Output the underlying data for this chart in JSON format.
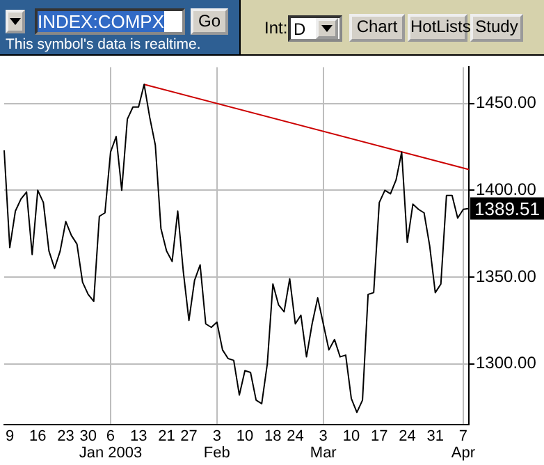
{
  "chart_data": {
    "type": "line",
    "categories": [
      null,
      "9",
      null,
      null,
      null,
      null,
      "16",
      null,
      null,
      null,
      null,
      "23",
      null,
      null,
      null,
      "30",
      null,
      null,
      null,
      "6\nJan 2003",
      null,
      null,
      null,
      null,
      "13",
      null,
      null,
      null,
      null,
      "21",
      null,
      null,
      null,
      "27",
      null,
      null,
      null,
      null,
      "3\nFeb",
      null,
      null,
      null,
      null,
      "10",
      null,
      null,
      null,
      null,
      "18",
      null,
      null,
      null,
      "24",
      null,
      null,
      null,
      null,
      "3\nMar",
      null,
      null,
      null,
      null,
      "10",
      null,
      null,
      null,
      null,
      "17",
      null,
      null,
      null,
      null,
      "24",
      null,
      null,
      null,
      null,
      "31",
      null,
      null,
      null,
      null,
      "7\nApr",
      null
    ],
    "series": [
      {
        "color": "#000000",
        "values": [
          1423,
          1367,
          1388,
          1395,
          1399,
          1363,
          1400,
          1393,
          1365,
          1355,
          1365,
          1382,
          1374,
          1369,
          1347,
          1340,
          1336,
          1385,
          1387,
          1422,
          1431,
          1400,
          1441,
          1448,
          1448,
          1461,
          1442,
          1426,
          1378,
          1365,
          1359,
          1388,
          1353,
          1325,
          1348,
          1357,
          1323,
          1321,
          1324,
          1308,
          1303,
          1302,
          1282,
          1296,
          1295,
          1279,
          1277,
          1300,
          1346,
          1334,
          1330,
          1349,
          1323,
          1328,
          1304,
          1323,
          1338,
          1323,
          1308,
          1314,
          1304,
          1305,
          1280,
          1272,
          1279,
          1340,
          1341,
          1393,
          1400,
          1398,
          1406,
          1422,
          1370,
          1392,
          1389,
          1387,
          1368,
          1341,
          1346,
          1397,
          1397,
          1384,
          1389,
          1389.51
        ]
      },
      {
        "type": "line",
        "color": "#cc0000",
        "values": [
          null,
          null,
          null,
          null,
          null,
          null,
          null,
          null,
          null,
          null,
          null,
          null,
          null,
          null,
          null,
          null,
          null,
          null,
          null,
          null,
          null,
          null,
          null,
          null,
          null,
          1461,
          null,
          null,
          null,
          null,
          null,
          null,
          null,
          null,
          null,
          null,
          null,
          null,
          null,
          null,
          null,
          null,
          null,
          null,
          null,
          null,
          null,
          null,
          null,
          null,
          null,
          null,
          null,
          null,
          null,
          null,
          null,
          null,
          null,
          null,
          null,
          null,
          null,
          null,
          null,
          null,
          null,
          null,
          null,
          null,
          null,
          null,
          null,
          null,
          null,
          null,
          null,
          null,
          null,
          null,
          null,
          null,
          null,
          1412
        ]
      }
    ],
    "ylim": [
      1265,
      1471
    ],
    "yticks": [
      {
        "value": 1300,
        "label": "1300.00"
      },
      {
        "value": 1350,
        "label": "1350.00"
      },
      {
        "value": 1400,
        "label": "1400.00"
      },
      {
        "value": 1450,
        "label": "1450.00"
      }
    ],
    "grid": true,
    "marker": "none",
    "annotations": [
      "INDEX:COMPX",
      "Go",
      "This symbol's data is realtime.",
      "Int:",
      "D",
      "Chart",
      "HotLists",
      "Study",
      "1389.51"
    ]
  }
}
